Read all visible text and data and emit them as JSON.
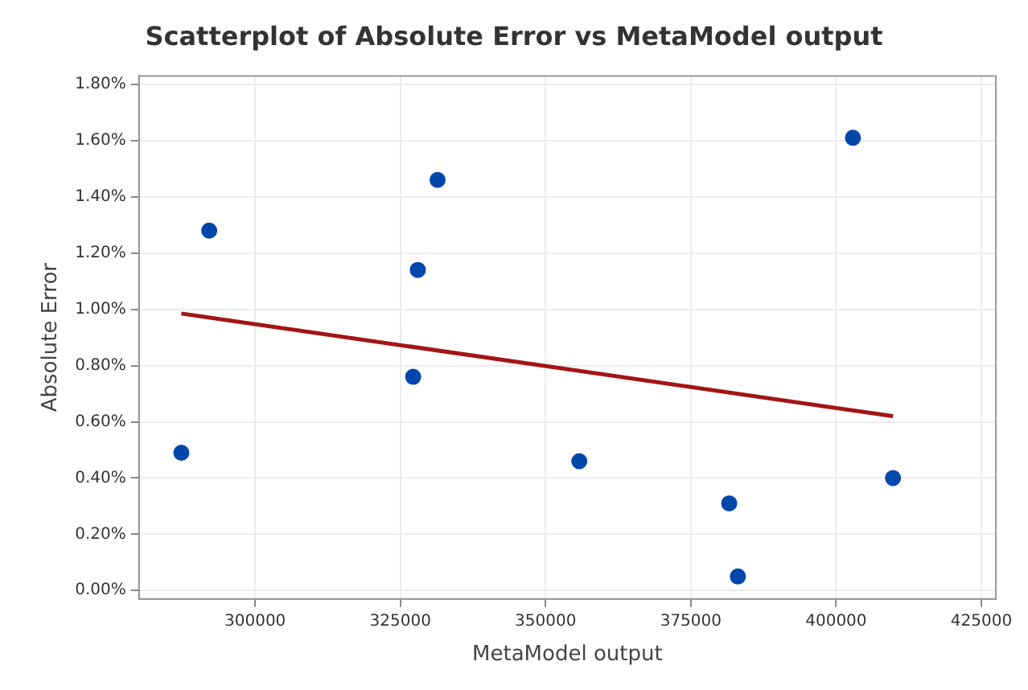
{
  "chart_data": {
    "type": "scatter",
    "title": "Scatterplot of Absolute Error vs MetaModel output",
    "xlabel": "MetaModel output",
    "ylabel": "Absolute Error",
    "xlim": [
      280000,
      427500
    ],
    "xticks": [
      300000,
      325000,
      350000,
      375000,
      400000,
      425000
    ],
    "ylim": [
      -0.03,
      1.83
    ],
    "yticks": [
      {
        "value": 0,
        "label": "0.00%"
      },
      {
        "value": 0.2,
        "label": "0.20%"
      },
      {
        "value": 0.4,
        "label": "0.40%"
      },
      {
        "value": 0.6,
        "label": "0.60%"
      },
      {
        "value": 0.8,
        "label": "0.80%"
      },
      {
        "value": 1.0,
        "label": "1.00%"
      },
      {
        "value": 1.2,
        "label": "1.20%"
      },
      {
        "value": 1.4,
        "label": "1.40%"
      },
      {
        "value": 1.6,
        "label": "1.60%"
      },
      {
        "value": 1.8,
        "label": "1.80%"
      }
    ],
    "grid": true,
    "series": [
      {
        "marker": "circle",
        "color": "#0047ab",
        "x": [
          287300,
          292100,
          327200,
          328000,
          331400,
          355800,
          381600,
          383100,
          402900,
          409800
        ],
        "values": [
          0.49,
          1.28,
          0.76,
          1.14,
          1.46,
          0.46,
          0.31,
          0.05,
          1.61,
          0.4
        ]
      },
      {
        "type": "line",
        "marker": "none",
        "color": "#a31515",
        "x": [
          287300,
          409800
        ],
        "values": [
          0.985,
          0.62
        ]
      }
    ]
  }
}
